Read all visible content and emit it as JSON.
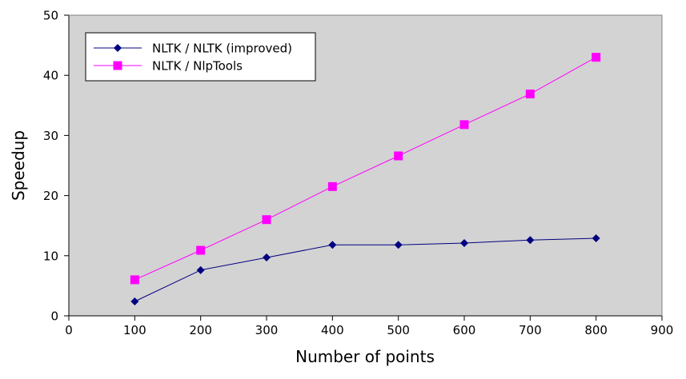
{
  "chart_data": {
    "type": "line",
    "title": "",
    "xlabel": "Number of points",
    "ylabel": "Speedup",
    "xlim": [
      0,
      900
    ],
    "ylim": [
      0,
      50
    ],
    "xticks": [
      0,
      100,
      200,
      300,
      400,
      500,
      600,
      700,
      800,
      900
    ],
    "yticks": [
      0,
      10,
      20,
      30,
      40,
      50
    ],
    "grid": false,
    "legend_position": "top-left",
    "plot_background": "#d3d3d3",
    "x": [
      100,
      200,
      300,
      400,
      500,
      600,
      700,
      800
    ],
    "series": [
      {
        "name": "NLTK / NLTK (improved)",
        "color": "#000080",
        "marker": "diamond",
        "values": [
          2.4,
          7.6,
          9.7,
          11.8,
          11.8,
          12.1,
          12.6,
          12.9
        ]
      },
      {
        "name": "NLTK / NlpTools",
        "color": "#ff00ff",
        "marker": "square",
        "values": [
          6.0,
          10.9,
          16.0,
          21.5,
          26.6,
          31.8,
          36.9,
          43.0
        ]
      }
    ]
  }
}
